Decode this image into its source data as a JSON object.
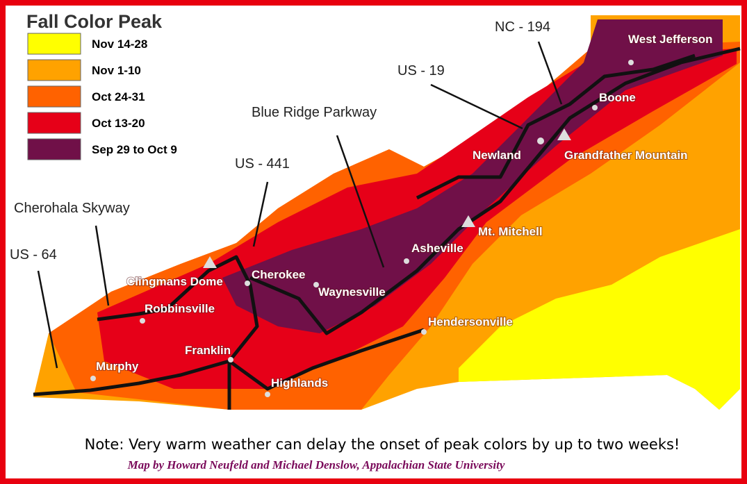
{
  "legend": {
    "title": "Fall Color Peak",
    "items": [
      {
        "label": "Nov 14-28",
        "color": "#ffff00"
      },
      {
        "label": "Nov 1-10",
        "color": "#ffa200"
      },
      {
        "label": "Oct 24-31",
        "color": "#ff6200"
      },
      {
        "label": "Oct 13-20",
        "color": "#e60018"
      },
      {
        "label": "Sep 29 to Oct 9",
        "color": "#701048"
      }
    ]
  },
  "roads": [
    "NC - 194",
    "US - 19",
    "Blue Ridge Parkway",
    "US - 441",
    "Cherohala Skyway",
    "US - 64"
  ],
  "places": [
    "West Jefferson",
    "Boone",
    "Newland",
    "Grandfather Mountain",
    "Mt. Mitchell",
    "Asheville",
    "Cherokee",
    "Clingmans Dome",
    "Waynesville",
    "Robbinsville",
    "Hendersonville",
    "Franklin",
    "Murphy",
    "Highlands"
  ],
  "note": "Note: Very warm weather can delay the onset of peak colors by up to two weeks!",
  "credit": "Map by Howard Neufeld and Michael Denslow, Appalachian State University"
}
